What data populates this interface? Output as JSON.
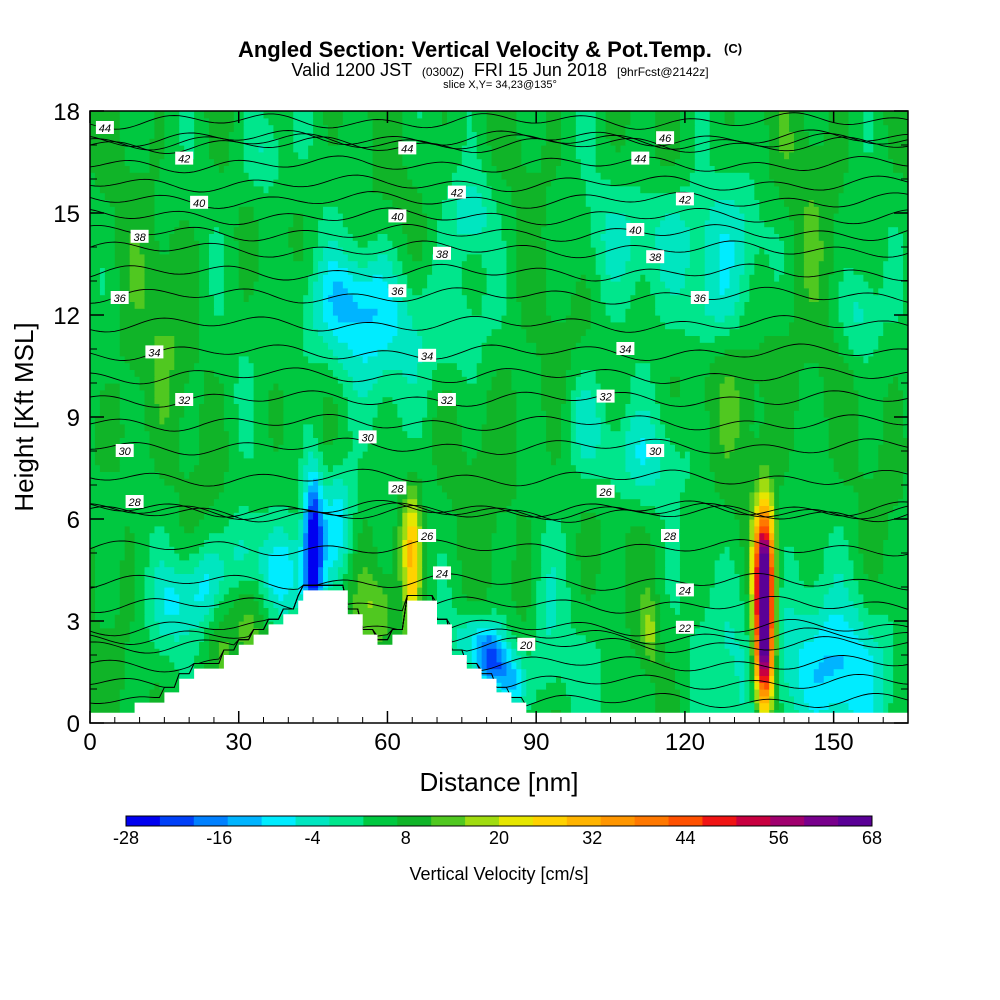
{
  "chart_data": {
    "type": "heatmap",
    "title": "Angled Section: Vertical Velocity & Pot.Temp.",
    "title_mark": "(C)",
    "subtitle_parts": [
      "Valid 1200 JST",
      "(0300Z)",
      "FRI 15 Jun 2018",
      "[9hrFcst@2142z]"
    ],
    "slice_label": "slice X,Y= 34,23@135°",
    "xlabel": "Distance [nm]",
    "ylabel": "Height [Kft MSL]",
    "xlim": [
      0,
      165
    ],
    "ylim": [
      0,
      18
    ],
    "x_ticks": [
      0,
      30,
      60,
      90,
      120,
      150
    ],
    "y_ticks": [
      0,
      3,
      6,
      9,
      12,
      15,
      18
    ],
    "grid": false,
    "colorbar": {
      "title": "Vertical Velocity [cm/s]",
      "labels": [
        -28,
        -16,
        -4,
        8,
        20,
        32,
        44,
        56,
        68
      ],
      "colors": [
        "#0000f0",
        "#0040f8",
        "#0080ff",
        "#00b4ff",
        "#00ecff",
        "#00e6c0",
        "#00e68c",
        "#00c840",
        "#10b428",
        "#50c820",
        "#a0dc10",
        "#e6e600",
        "#ffd200",
        "#ffb400",
        "#ff9600",
        "#ff7800",
        "#ff5000",
        "#f01414",
        "#c80040",
        "#a0006e",
        "#78008c",
        "#5a0096"
      ]
    },
    "background_value": 6,
    "terrain": [
      [
        0,
        0.3
      ],
      [
        9,
        0.3
      ],
      [
        9,
        0.6
      ],
      [
        15,
        0.6
      ],
      [
        15,
        0.9
      ],
      [
        18,
        0.9
      ],
      [
        18,
        1.3
      ],
      [
        21,
        1.3
      ],
      [
        21,
        1.6
      ],
      [
        27,
        1.6
      ],
      [
        27,
        2.0
      ],
      [
        30,
        2.0
      ],
      [
        30,
        2.3
      ],
      [
        33,
        2.3
      ],
      [
        33,
        2.6
      ],
      [
        36,
        2.6
      ],
      [
        36,
        2.9
      ],
      [
        39,
        2.9
      ],
      [
        39,
        3.2
      ],
      [
        42,
        3.2
      ],
      [
        42,
        3.6
      ],
      [
        43,
        3.6
      ],
      [
        43,
        3.9
      ],
      [
        52,
        3.9
      ],
      [
        52,
        3.2
      ],
      [
        55,
        3.2
      ],
      [
        55,
        2.6
      ],
      [
        58,
        2.6
      ],
      [
        58,
        2.3
      ],
      [
        61,
        2.3
      ],
      [
        61,
        2.6
      ],
      [
        64,
        2.6
      ],
      [
        64,
        3.6
      ],
      [
        70,
        3.6
      ],
      [
        70,
        2.9
      ],
      [
        73,
        2.9
      ],
      [
        73,
        2.0
      ],
      [
        76,
        2.0
      ],
      [
        76,
        1.6
      ],
      [
        79,
        1.6
      ],
      [
        79,
        1.3
      ],
      [
        82,
        1.3
      ],
      [
        82,
        0.9
      ],
      [
        85,
        0.9
      ],
      [
        85,
        0.6
      ],
      [
        88,
        0.6
      ],
      [
        88,
        0.3
      ],
      [
        165,
        0.3
      ]
    ],
    "velocity_features": [
      {
        "x": 45,
        "y": 5.2,
        "sx": 1.4,
        "sy": 1.6,
        "value": -28
      },
      {
        "x": 50,
        "y": 6.0,
        "sx": 2.5,
        "sy": 1.2,
        "value": -10
      },
      {
        "x": 38,
        "y": 4.4,
        "sx": 5.0,
        "sy": 1.0,
        "value": -8
      },
      {
        "x": 31,
        "y": 5.0,
        "sx": 2.5,
        "sy": 1.0,
        "value": -7
      },
      {
        "x": 24,
        "y": 4.2,
        "sx": 3.0,
        "sy": 0.9,
        "value": -6
      },
      {
        "x": 18,
        "y": 3.5,
        "sx": 4.0,
        "sy": 0.9,
        "value": -5
      },
      {
        "x": 81,
        "y": 1.8,
        "sx": 2.2,
        "sy": 0.6,
        "value": -20
      },
      {
        "x": 85,
        "y": 1.2,
        "sx": 2.0,
        "sy": 0.6,
        "value": -12
      },
      {
        "x": 78,
        "y": 2.6,
        "sx": 4.0,
        "sy": 0.5,
        "value": -5
      },
      {
        "x": 33,
        "y": 4.0,
        "sx": 3.0,
        "sy": 1.5,
        "value": 16
      },
      {
        "x": 26,
        "y": 3.0,
        "sx": 2.0,
        "sy": 1.5,
        "value": 12
      },
      {
        "x": 58,
        "y": 3.4,
        "sx": 3.0,
        "sy": 0.8,
        "value": 14
      },
      {
        "x": 65,
        "y": 4.6,
        "sx": 1.2,
        "sy": 1.6,
        "value": 24
      },
      {
        "x": 64,
        "y": 5.4,
        "sx": 2.0,
        "sy": 1.0,
        "value": 14
      },
      {
        "x": 113,
        "y": 2.7,
        "sx": 1.2,
        "sy": 0.7,
        "value": 16
      },
      {
        "x": 136,
        "y": 3.2,
        "sx": 1.3,
        "sy": 1.7,
        "value": 68
      },
      {
        "x": 136,
        "y": 4.8,
        "sx": 1.5,
        "sy": 1.3,
        "value": 30
      },
      {
        "x": 136,
        "y": 1.6,
        "sx": 1.6,
        "sy": 1.1,
        "value": 28
      },
      {
        "x": 140,
        "y": 1.8,
        "sx": 12.0,
        "sy": 1.8,
        "value": -4
      },
      {
        "x": 152,
        "y": 1.4,
        "sx": 7.0,
        "sy": 1.3,
        "value": -4
      },
      {
        "x": 96,
        "y": 1.5,
        "sx": 7.0,
        "sy": 1.0,
        "value": 2
      },
      {
        "x": 92,
        "y": 3.4,
        "sx": 2.0,
        "sy": 1.4,
        "value": 0
      },
      {
        "x": 110,
        "y": 7.8,
        "sx": 6.0,
        "sy": 1.0,
        "value": -4
      },
      {
        "x": 100,
        "y": 9.0,
        "sx": 3.0,
        "sy": 1.0,
        "value": -4
      },
      {
        "x": 62,
        "y": 11.5,
        "sx": 14.0,
        "sy": 1.5,
        "value": -4
      },
      {
        "x": 52,
        "y": 12.5,
        "sx": 6.0,
        "sy": 1.0,
        "value": -4
      },
      {
        "x": 120,
        "y": 14.3,
        "sx": 14.0,
        "sy": 1.2,
        "value": -4
      },
      {
        "x": 125,
        "y": 12.2,
        "sx": 5.0,
        "sy": 1.0,
        "value": -4
      },
      {
        "x": 155,
        "y": 12.0,
        "sx": 3.0,
        "sy": 1.0,
        "value": -4
      },
      {
        "x": 35,
        "y": 16.8,
        "sx": 3.0,
        "sy": 1.0,
        "value": -4
      },
      {
        "x": 77,
        "y": 15.0,
        "sx": 3.0,
        "sy": 0.8,
        "value": -4
      },
      {
        "x": 135,
        "y": 10.2,
        "sx": 8.0,
        "sy": 1.8,
        "value": 10
      },
      {
        "x": 85,
        "y": 10.0,
        "sx": 6.0,
        "sy": 2.5,
        "value": 10
      },
      {
        "x": 15,
        "y": 12.0,
        "sx": 5.0,
        "sy": 2.0,
        "value": 10
      },
      {
        "x": 7,
        "y": 8.5,
        "sx": 2.0,
        "sy": 1.6,
        "value": 10
      },
      {
        "x": 145,
        "y": 15.0,
        "sx": 6.0,
        "sy": 2.0,
        "value": 10
      }
    ],
    "theta_contour_labels": [
      {
        "value": 44,
        "x": 3,
        "y": 17.5
      },
      {
        "value": 42,
        "x": 19,
        "y": 16.6
      },
      {
        "value": 40,
        "x": 22,
        "y": 15.3
      },
      {
        "value": 38,
        "x": 10,
        "y": 14.3
      },
      {
        "value": 36,
        "x": 6,
        "y": 12.5
      },
      {
        "value": 34,
        "x": 13,
        "y": 10.9
      },
      {
        "value": 32,
        "x": 19,
        "y": 9.5
      },
      {
        "value": 30,
        "x": 7,
        "y": 8.0
      },
      {
        "value": 28,
        "x": 9,
        "y": 6.5
      },
      {
        "value": 44,
        "x": 64,
        "y": 16.9
      },
      {
        "value": 42,
        "x": 74,
        "y": 15.6
      },
      {
        "value": 40,
        "x": 62,
        "y": 14.9
      },
      {
        "value": 38,
        "x": 71,
        "y": 13.8
      },
      {
        "value": 36,
        "x": 62,
        "y": 12.7
      },
      {
        "value": 34,
        "x": 68,
        "y": 10.8
      },
      {
        "value": 32,
        "x": 72,
        "y": 9.5
      },
      {
        "value": 30,
        "x": 56,
        "y": 8.4
      },
      {
        "value": 28,
        "x": 62,
        "y": 6.9
      },
      {
        "value": 26,
        "x": 68,
        "y": 5.5
      },
      {
        "value": 24,
        "x": 71,
        "y": 4.4
      },
      {
        "value": 20,
        "x": 88,
        "y": 2.3
      },
      {
        "value": 46,
        "x": 116,
        "y": 17.2
      },
      {
        "value": 44,
        "x": 111,
        "y": 16.6
      },
      {
        "value": 42,
        "x": 120,
        "y": 15.4
      },
      {
        "value": 40,
        "x": 110,
        "y": 14.5
      },
      {
        "value": 38,
        "x": 114,
        "y": 13.7
      },
      {
        "value": 36,
        "x": 123,
        "y": 12.5
      },
      {
        "value": 34,
        "x": 108,
        "y": 11.0
      },
      {
        "value": 32,
        "x": 104,
        "y": 9.6
      },
      {
        "value": 30,
        "x": 114,
        "y": 8.0
      },
      {
        "value": 26,
        "x": 104,
        "y": 6.8
      },
      {
        "value": 28,
        "x": 117,
        "y": 5.5
      },
      {
        "value": 24,
        "x": 120,
        "y": 3.9
      },
      {
        "value": 22,
        "x": 120,
        "y": 2.8
      }
    ]
  }
}
